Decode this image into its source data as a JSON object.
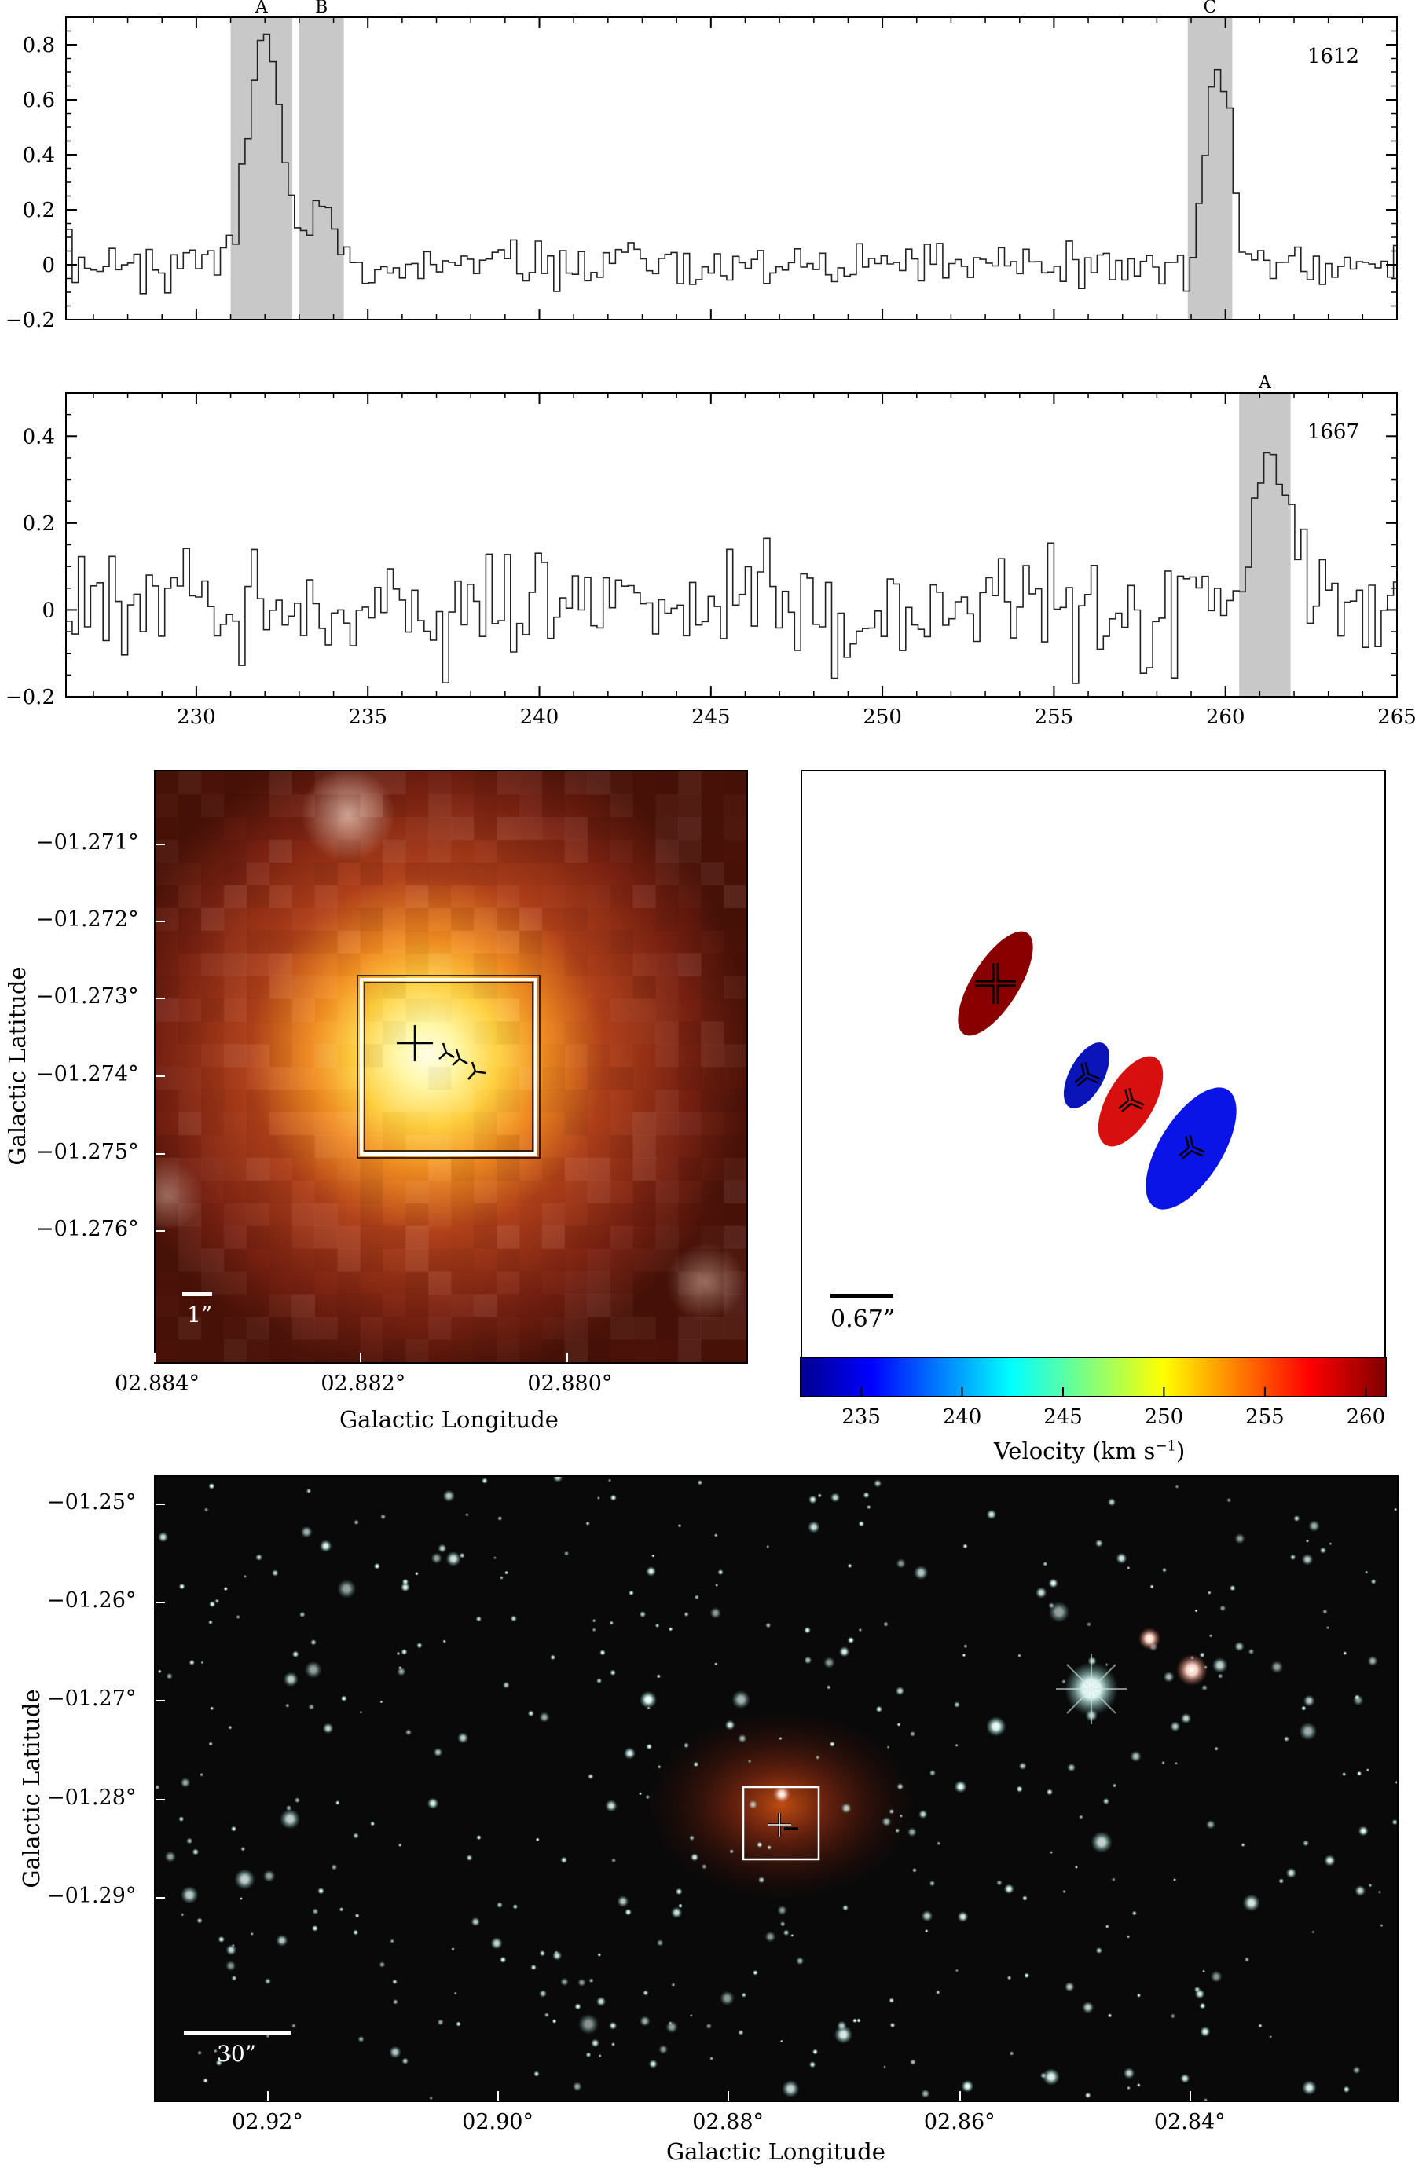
{
  "spectra": [
    {
      "id": "1612",
      "line_label": "1612",
      "xlim": [
        226.2,
        265.0
      ],
      "ylim": [
        -0.2,
        0.9
      ],
      "x_ticks": [
        230,
        235,
        240,
        245,
        250,
        255,
        260,
        265
      ],
      "x_tick_labels": [
        "230",
        "235",
        "240",
        "245",
        "250",
        "255",
        "260",
        "265"
      ],
      "y_ticks": [
        -0.2,
        0,
        0.2,
        0.4,
        0.6,
        0.8
      ],
      "y_tick_labels": [
        "−0.2",
        "0",
        "0.2",
        "0.4",
        "0.6",
        "0.8"
      ],
      "noise_sigma": 0.045,
      "channel_width": 0.18,
      "features": [
        {
          "label": "A",
          "range": [
            231.0,
            232.8
          ],
          "center": 231.9,
          "peak": 0.86,
          "width": 0.45
        },
        {
          "label": "B",
          "range": [
            233.0,
            234.3
          ],
          "center": 233.6,
          "peak": 0.2,
          "width": 0.45
        },
        {
          "label": "C",
          "range": [
            258.9,
            260.2
          ],
          "center": 259.7,
          "peak": 0.78,
          "width": 0.35
        }
      ]
    },
    {
      "id": "1667",
      "line_label": "1667",
      "xlim": [
        226.2,
        265.0
      ],
      "ylim": [
        -0.2,
        0.5
      ],
      "x_ticks": [
        230,
        235,
        240,
        245,
        250,
        255,
        260,
        265
      ],
      "x_tick_labels": [
        "230",
        "235",
        "240",
        "245",
        "250",
        "255",
        "260",
        "265"
      ],
      "y_ticks": [
        -0.2,
        0,
        0.2,
        0.4
      ],
      "y_tick_labels": [
        "−0.2",
        "0",
        "0.2",
        "0.4"
      ],
      "noise_sigma": 0.06,
      "channel_width": 0.18,
      "features": [
        {
          "label": "A",
          "range": [
            260.4,
            261.9
          ],
          "center": 261.3,
          "peak": 0.38,
          "width": 0.45
        }
      ]
    }
  ],
  "zoom_image": {
    "xlabel": "Galactic Longitude",
    "ylabel": "Galactic Latitude",
    "x_tick_labels": [
      "02.884°",
      "02.882°",
      "02.880°"
    ],
    "y_tick_labels": [
      "−01.271°",
      "−01.272°",
      "−01.273°",
      "−01.274°",
      "−01.275°",
      "−01.276°"
    ],
    "scalebar_label": "1”"
  },
  "maser_map": {
    "scalebar_label": "0.67”",
    "colorbar_label": "Velocity (km s",
    "colorbar_label_sup": "−1",
    "colorbar_label_end": ")",
    "colorbar_ticks": [
      "235",
      "240",
      "245",
      "250",
      "255",
      "260"
    ],
    "colorbar_range": [
      232.0,
      261.0
    ],
    "spots": [
      {
        "marker": "plus",
        "velocity": 261.0,
        "color": "#8a0000"
      },
      {
        "marker": "triad",
        "velocity": 233.0,
        "color": "#0a14b8"
      },
      {
        "marker": "triad",
        "velocity": 259.5,
        "color": "#d70f0f"
      },
      {
        "marker": "triad",
        "velocity": 232.0,
        "color": "#0a14e6"
      }
    ]
  },
  "wide_image": {
    "xlabel": "Galactic Longitude",
    "ylabel": "Galactic Latitude",
    "x_tick_labels": [
      "02.92°",
      "02.90°",
      "02.88°",
      "02.86°",
      "02.84°"
    ],
    "y_tick_labels": [
      "−01.25°",
      "−01.26°",
      "−01.27°",
      "−01.28°",
      "−01.29°"
    ],
    "scalebar_label": "30”"
  }
}
